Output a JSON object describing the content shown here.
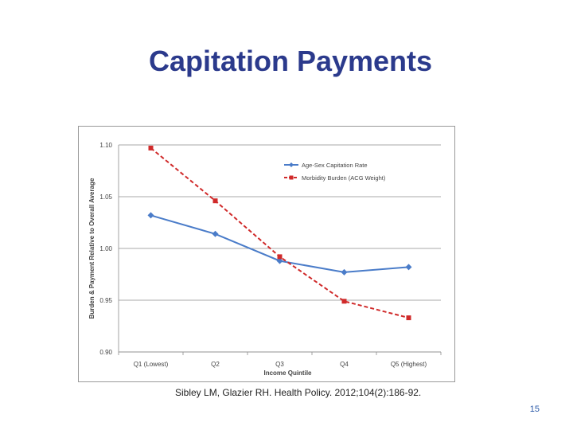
{
  "slide": {
    "title": "Capitation Payments",
    "citation": "Sibley LM, Glazier RH. Health Policy. 2012;104(2):186-92.",
    "page_number": "15"
  },
  "chart_data": {
    "type": "line",
    "title": "",
    "xlabel": "Income Quintile",
    "ylabel": "Burden & Payment Relative to Overall Average",
    "categories": [
      "Q1 (Lowest)",
      "Q2",
      "Q3",
      "Q4",
      "Q5 (Highest)"
    ],
    "ylim": [
      0.9,
      1.1
    ],
    "yticks": [
      "0.90",
      "0.95",
      "1.00",
      "1.05",
      "1.10"
    ],
    "grid": true,
    "legend_position": "top-right",
    "series": [
      {
        "name": "Age-Sex Capitation Rate",
        "values": [
          1.032,
          1.014,
          0.988,
          0.977,
          0.982
        ],
        "color": "#4a7cc9",
        "style": "solid",
        "marker": "diamond"
      },
      {
        "name": "Morbidity Burden (ACG Weight)",
        "values": [
          1.097,
          1.046,
          0.992,
          0.949,
          0.933
        ],
        "color": "#d02a2a",
        "style": "dashed",
        "marker": "square"
      }
    ]
  }
}
